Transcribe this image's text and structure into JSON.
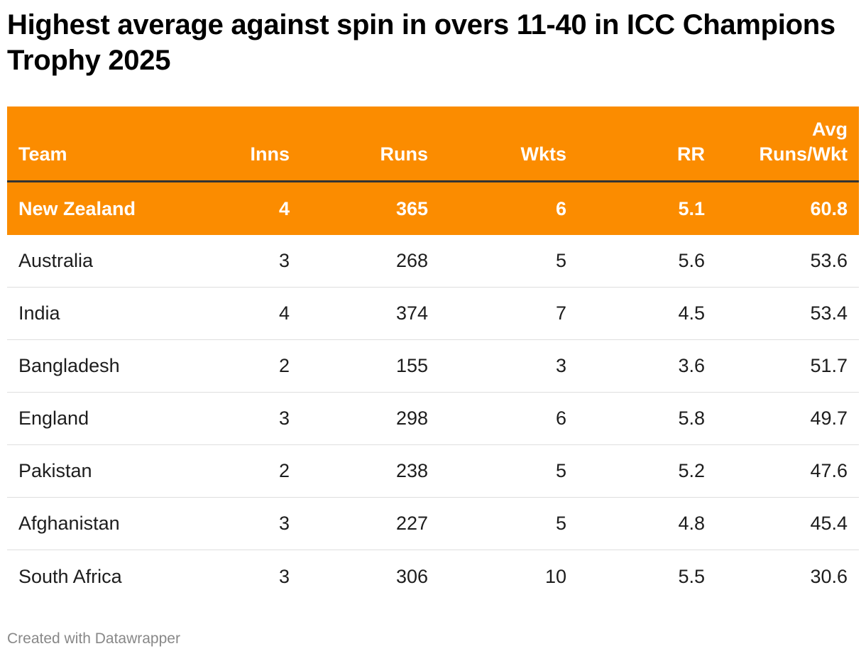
{
  "title": "Highest average against spin in overs 11-40 in ICC Champions Trophy 2025",
  "colors": {
    "highlight": "#fb8c00",
    "header_text": "#ffffff",
    "body_text": "#1d1d1d",
    "divider": "#dedede",
    "footer_text": "#888888"
  },
  "chart_data": {
    "type": "table",
    "columns": [
      "Team",
      "Inns",
      "Runs",
      "Wkts",
      "RR",
      "Avg\nRuns/Wkt"
    ],
    "rows": [
      {
        "team": "New Zealand",
        "inns": "4",
        "runs": "365",
        "wkts": "6",
        "rr": "5.1",
        "avg": "60.8",
        "highlight": true
      },
      {
        "team": "Australia",
        "inns": "3",
        "runs": "268",
        "wkts": "5",
        "rr": "5.6",
        "avg": "53.6",
        "highlight": false
      },
      {
        "team": "India",
        "inns": "4",
        "runs": "374",
        "wkts": "7",
        "rr": "4.5",
        "avg": "53.4",
        "highlight": false
      },
      {
        "team": "Bangladesh",
        "inns": "2",
        "runs": "155",
        "wkts": "3",
        "rr": "3.6",
        "avg": "51.7",
        "highlight": false
      },
      {
        "team": "England",
        "inns": "3",
        "runs": "298",
        "wkts": "6",
        "rr": "5.8",
        "avg": "49.7",
        "highlight": false
      },
      {
        "team": "Pakistan",
        "inns": "2",
        "runs": "238",
        "wkts": "5",
        "rr": "5.2",
        "avg": "47.6",
        "highlight": false
      },
      {
        "team": "Afghanistan",
        "inns": "3",
        "runs": "227",
        "wkts": "5",
        "rr": "4.8",
        "avg": "45.4",
        "highlight": false
      },
      {
        "team": "South Africa",
        "inns": "3",
        "runs": "306",
        "wkts": "10",
        "rr": "5.5",
        "avg": "30.6",
        "highlight": false
      }
    ]
  },
  "footer": {
    "credit": "Created with Datawrapper"
  }
}
